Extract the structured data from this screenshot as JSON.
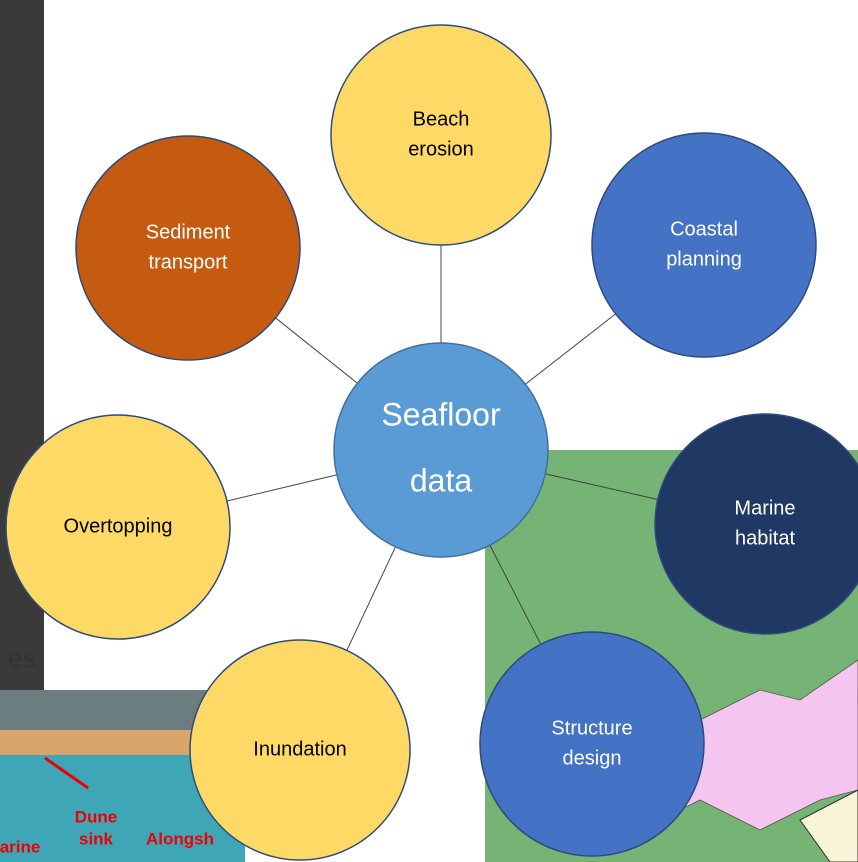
{
  "center": {
    "label": [
      "Seafloor",
      "data"
    ]
  },
  "nodes": [
    {
      "label": [
        "Beach",
        "erosion"
      ]
    },
    {
      "label": [
        "Sediment",
        "transport"
      ]
    },
    {
      "label": [
        "Coastal",
        "planning"
      ]
    },
    {
      "label": [
        "Overtopping"
      ]
    },
    {
      "label": [
        "Marine",
        "habitat"
      ]
    },
    {
      "label": [
        "Inundation"
      ]
    },
    {
      "label": [
        "Structure",
        "design"
      ]
    }
  ],
  "side_panel": {
    "fragment": "es"
  },
  "photo": {
    "labels": [
      [
        "Dune",
        "sink"
      ],
      [
        "Alongsh"
      ],
      [
        "arine"
      ]
    ]
  }
}
